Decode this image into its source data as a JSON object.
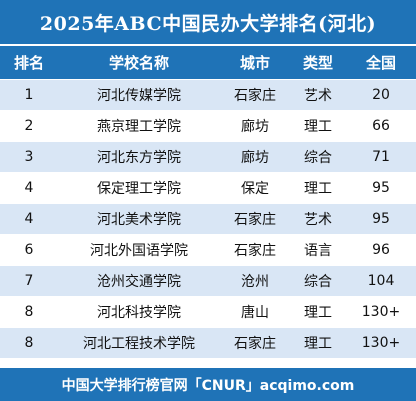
{
  "title": "2025年ABC中国民办大学排名(河北)",
  "headers": {
    "rank": "排名",
    "school": "学校名称",
    "city": "城市",
    "type": "类型",
    "national": "全国"
  },
  "rows": [
    {
      "rank": "1",
      "school": "河北传媒学院",
      "city": "石家庄",
      "type": "艺术",
      "national": "20"
    },
    {
      "rank": "2",
      "school": "燕京理工学院",
      "city": "廊坊",
      "type": "理工",
      "national": "66"
    },
    {
      "rank": "3",
      "school": "河北东方学院",
      "city": "廊坊",
      "type": "综合",
      "national": "71"
    },
    {
      "rank": "4",
      "school": "保定理工学院",
      "city": "保定",
      "type": "理工",
      "national": "95"
    },
    {
      "rank": "4",
      "school": "河北美术学院",
      "city": "石家庄",
      "type": "艺术",
      "national": "95"
    },
    {
      "rank": "6",
      "school": "河北外国语学院",
      "city": "石家庄",
      "type": "语言",
      "national": "96"
    },
    {
      "rank": "7",
      "school": "沧州交通学院",
      "city": "沧州",
      "type": "综合",
      "national": "104"
    },
    {
      "rank": "8",
      "school": "河北科技学院",
      "city": "唐山",
      "type": "理工",
      "national": "130+"
    },
    {
      "rank": "8",
      "school": "河北工程技术学院",
      "city": "石家庄",
      "type": "理工",
      "national": "130+"
    }
  ],
  "footer": "中国大学排行榜官网「CNUR」acqimo.com",
  "colors": {
    "header_blue": "#1f73b7",
    "row_alt": "#d9e6f5"
  }
}
